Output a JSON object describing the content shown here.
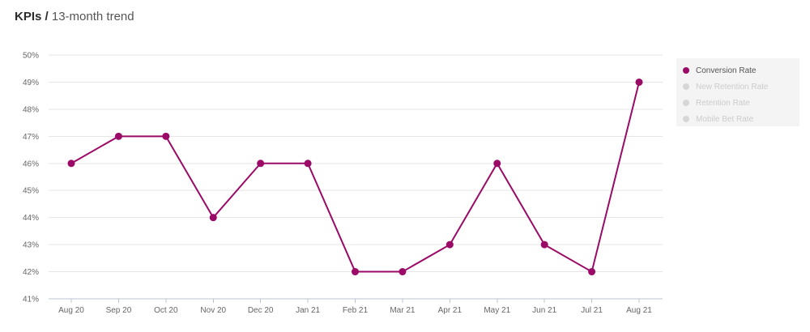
{
  "header": {
    "title": "KPIs",
    "separator": "/",
    "subtitle": "13-month trend"
  },
  "legend": {
    "placement": "right",
    "items": [
      {
        "label": "Conversion Rate",
        "color": "#9b0a66",
        "active": true
      },
      {
        "label": "New Retention Rate",
        "color": "#d6d6d6",
        "active": false
      },
      {
        "label": "Retention Rate",
        "color": "#d6d6d6",
        "active": false
      },
      {
        "label": "Mobile Bet Rate",
        "color": "#d6d6d6",
        "active": false
      }
    ]
  },
  "chart_data": {
    "type": "line",
    "title": "",
    "xlabel": "",
    "ylabel": "",
    "categories": [
      "Aug 20",
      "Sep 20",
      "Oct 20",
      "Nov 20",
      "Dec 20",
      "Jan 21",
      "Feb 21",
      "Mar 21",
      "Apr 21",
      "May 21",
      "Jun 21",
      "Jul 21",
      "Aug 21"
    ],
    "series": [
      {
        "name": "Conversion Rate",
        "color": "#9b0a66",
        "values": [
          46,
          47,
          47,
          44,
          46,
          46,
          42,
          42,
          43,
          46,
          43,
          42,
          49
        ]
      }
    ],
    "ylim": [
      41,
      50
    ],
    "yticks": [
      41,
      42,
      43,
      44,
      45,
      46,
      47,
      48,
      49,
      50
    ],
    "ytick_labels": [
      "41%",
      "42%",
      "43%",
      "44%",
      "45%",
      "46%",
      "47%",
      "48%",
      "49%",
      "50%"
    ],
    "grid": true,
    "legend_position": "right"
  }
}
